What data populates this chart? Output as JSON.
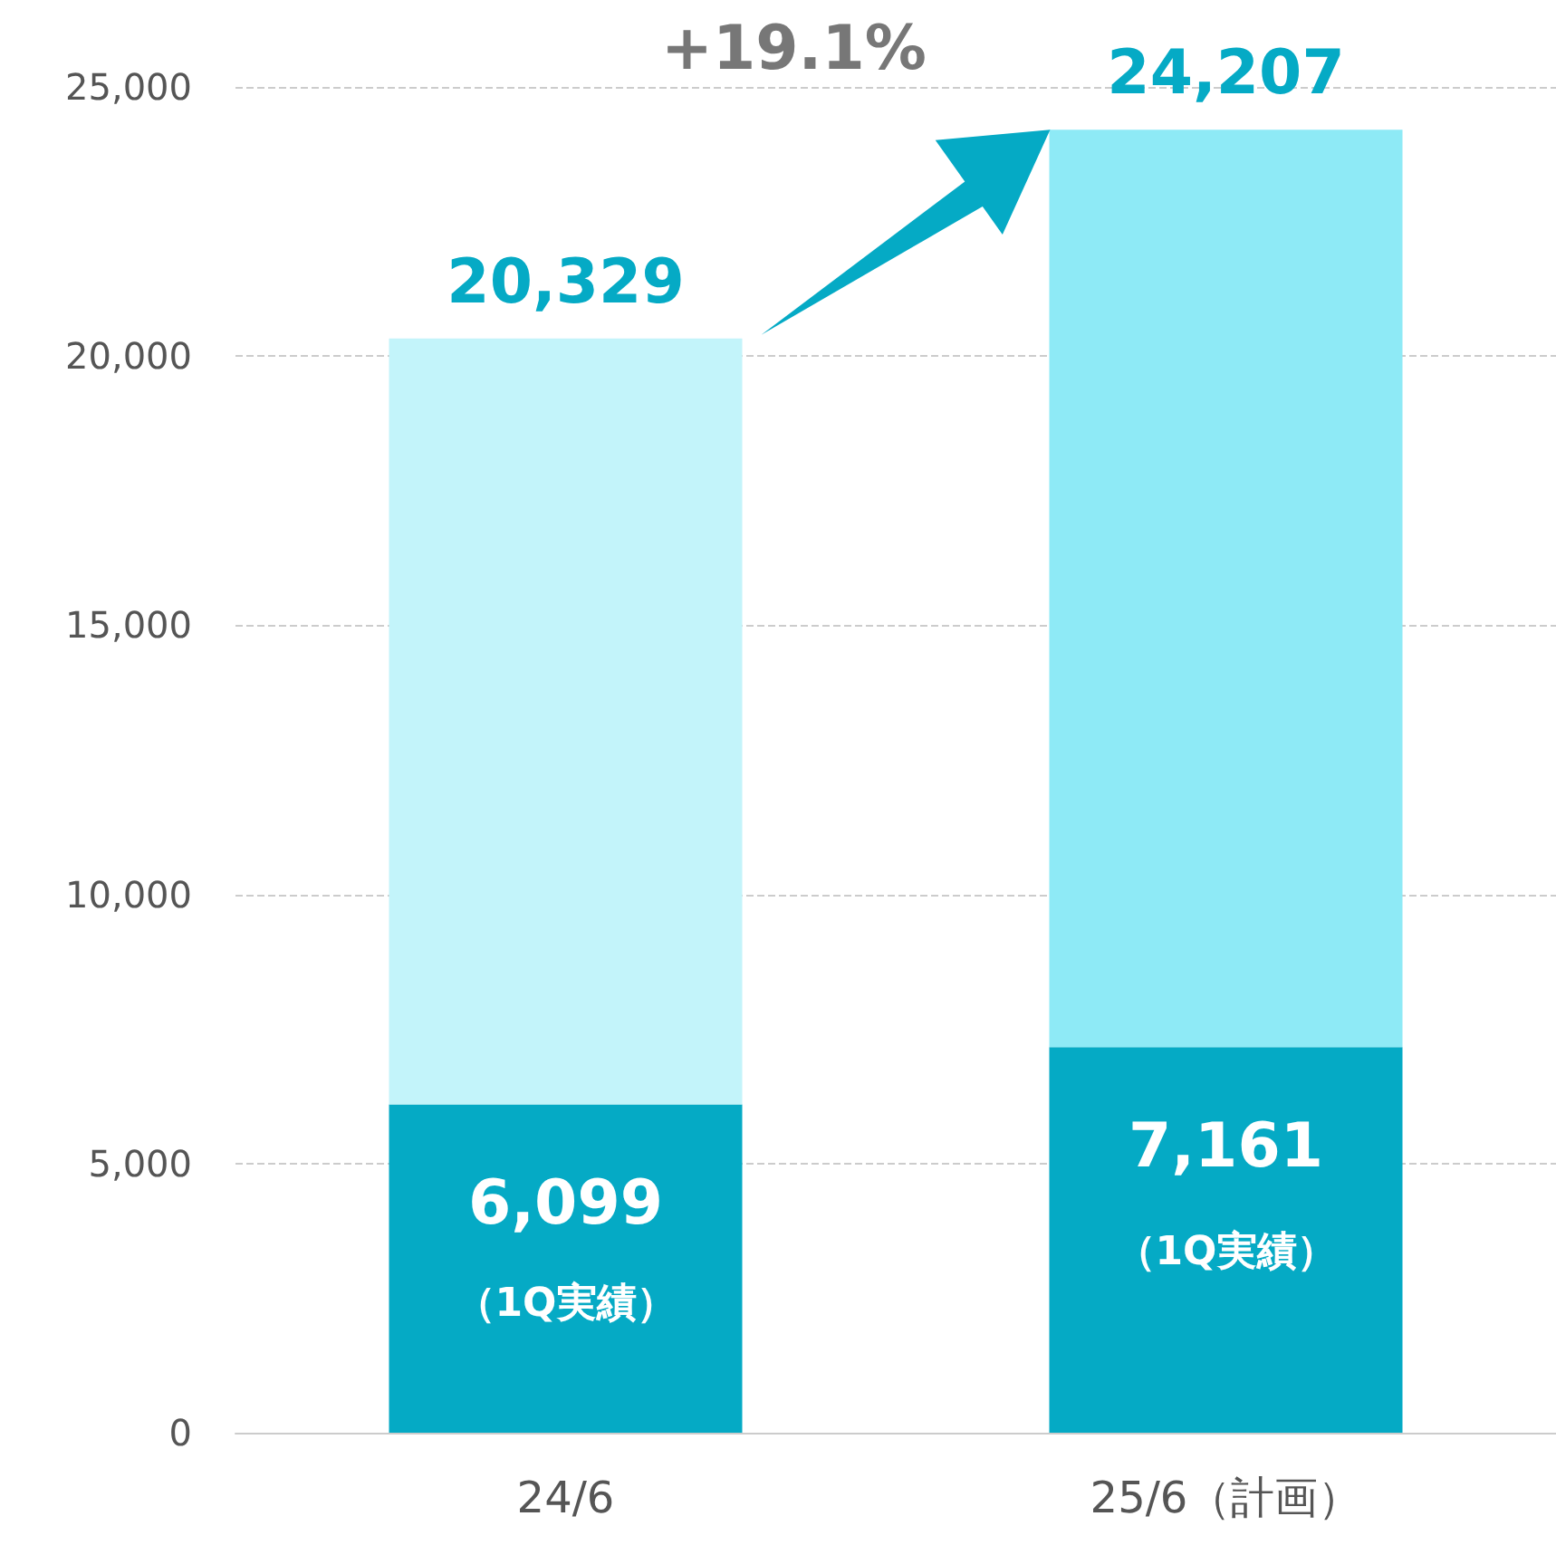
{
  "chart_data": {
    "type": "bar",
    "stacked": true,
    "categories": [
      "24/6",
      "25/6（計画）"
    ],
    "series": [
      {
        "color": "#05aac5",
        "values": [
          6099,
          7161
        ],
        "value_labels": [
          "6,099",
          "7,161"
        ]
      },
      {
        "colors": [
          "#c3f4fa",
          "#8eeaf6"
        ],
        "values": [
          14230,
          17046
        ]
      }
    ],
    "totals": [
      "20,329",
      "24,207"
    ],
    "annotations": [
      "+19.1%",
      "（1Q実績）",
      "（1Q実績）"
    ],
    "ylim": [
      0,
      25000
    ],
    "yticks": [
      0,
      {
        "value": 5000,
        "label": "5,000"
      },
      {
        "value": 10000,
        "label": "10,000"
      },
      {
        "value": 15000,
        "label": "15,000"
      },
      {
        "value": 20000,
        "label": "20,000"
      },
      {
        "value": 25000,
        "label": "25,000"
      }
    ],
    "grid": "y"
  }
}
